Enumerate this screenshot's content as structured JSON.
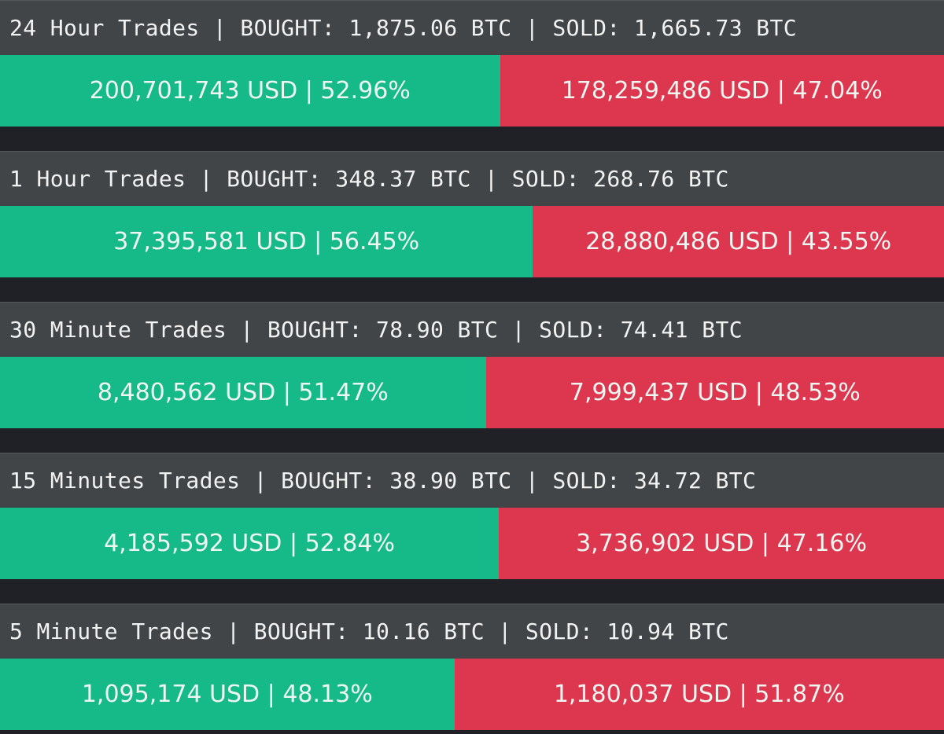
{
  "colors": {
    "background": "#1f2127",
    "header_background": "#424547",
    "bought": "#16b988",
    "sold": "#dd3750",
    "text": "#f2f2f2"
  },
  "panels": [
    {
      "period": "24 Hour Trades",
      "bought_label": "BOUGHT:",
      "bought_btc": "1,875.06 BTC",
      "sold_label": "SOLD:",
      "sold_btc": "1,665.73 BTC",
      "bought_usd_text": "200,701,743 USD | 52.96%",
      "sold_usd_text": "178,259,486 USD | 47.04%",
      "bought_share": 52.96,
      "sold_share": 47.04
    },
    {
      "period": "1 Hour Trades",
      "bought_label": "BOUGHT:",
      "bought_btc": "348.37 BTC",
      "sold_label": "SOLD:",
      "sold_btc": "268.76 BTC",
      "bought_usd_text": "37,395,581 USD | 56.45%",
      "sold_usd_text": "28,880,486 USD | 43.55%",
      "bought_share": 56.45,
      "sold_share": 43.55
    },
    {
      "period": "30 Minute Trades",
      "bought_label": "BOUGHT:",
      "bought_btc": "78.90 BTC",
      "sold_label": "SOLD:",
      "sold_btc": "74.41 BTC",
      "bought_usd_text": "8,480,562 USD | 51.47%",
      "sold_usd_text": "7,999,437 USD | 48.53%",
      "bought_share": 51.47,
      "sold_share": 48.53
    },
    {
      "period": "15 Minutes Trades",
      "bought_label": "BOUGHT:",
      "bought_btc": "38.90 BTC",
      "sold_label": "SOLD:",
      "sold_btc": "34.72 BTC",
      "bought_usd_text": "4,185,592 USD | 52.84%",
      "sold_usd_text": "3,736,902 USD | 47.16%",
      "bought_share": 52.84,
      "sold_share": 47.16
    },
    {
      "period": "5 Minute Trades",
      "bought_label": "BOUGHT:",
      "bought_btc": "10.16 BTC",
      "sold_label": "SOLD:",
      "sold_btc": "10.94 BTC",
      "bought_usd_text": "1,095,174 USD | 48.13%",
      "sold_usd_text": "1,180,037 USD | 51.87%",
      "bought_share": 48.13,
      "sold_share": 51.87
    }
  ]
}
